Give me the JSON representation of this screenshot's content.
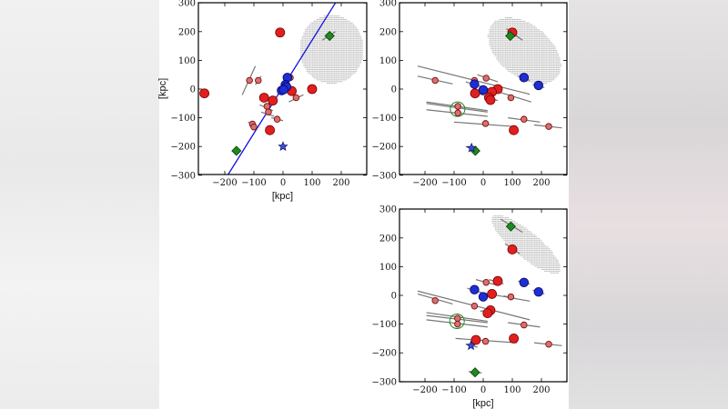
{
  "chart_data": [
    {
      "type": "scatter",
      "xlabel": "[kpc]",
      "ylabel": "[kpc]",
      "xlim": [
        -290,
        290
      ],
      "ylim": [
        -300,
        300
      ],
      "xticks": [
        -200,
        -100,
        0,
        100,
        200
      ],
      "yticks": [
        -300,
        -200,
        -100,
        0,
        100,
        200,
        300
      ],
      "grid": false,
      "colors": {
        "red": "#e02020",
        "small_red": "#d97070",
        "blue": "#1f2fcf",
        "green": "#1e8a1e",
        "line": "#1010e0",
        "region": "#bdbdbd",
        "error": "#777777"
      },
      "region": {
        "shape": "ellipse",
        "cx": 165,
        "cy": 140,
        "rx": 110,
        "ry": 120,
        "angle": 0
      },
      "fit_line": [
        [
          -190,
          -300
        ],
        [
          180,
          300
        ]
      ],
      "errors": [
        [
          -140,
          -20,
          -95,
          80
        ],
        [
          -95,
          15,
          -75,
          45
        ],
        [
          -80,
          -55,
          -35,
          -75
        ],
        [
          -75,
          -80,
          -30,
          -95
        ],
        [
          -120,
          -115,
          -90,
          -130
        ],
        [
          -40,
          -100,
          0,
          -110
        ],
        [
          20,
          -45,
          70,
          -20
        ],
        [
          135,
          170,
          180,
          200
        ],
        [
          -20,
          185,
          0,
          210
        ]
      ],
      "points": [
        {
          "x": -10,
          "y": 197,
          "kind": "red"
        },
        {
          "x": -270,
          "y": -15,
          "kind": "red"
        },
        {
          "x": -65,
          "y": -30,
          "kind": "red"
        },
        {
          "x": -35,
          "y": -40,
          "kind": "red"
        },
        {
          "x": 30,
          "y": -7,
          "kind": "red"
        },
        {
          "x": 100,
          "y": 0,
          "kind": "red"
        },
        {
          "x": -45,
          "y": -143,
          "kind": "red"
        },
        {
          "x": -115,
          "y": 30,
          "kind": "small_red"
        },
        {
          "x": -85,
          "y": 30,
          "kind": "small_red"
        },
        {
          "x": -55,
          "y": -60,
          "kind": "small_red"
        },
        {
          "x": -50,
          "y": -80,
          "kind": "small_red"
        },
        {
          "x": -105,
          "y": -122,
          "kind": "small_red"
        },
        {
          "x": -100,
          "y": -132,
          "kind": "small_red"
        },
        {
          "x": -20,
          "y": -105,
          "kind": "small_red"
        },
        {
          "x": 45,
          "y": -30,
          "kind": "small_red"
        },
        {
          "x": 25,
          "y": 40,
          "kind": "small_red"
        },
        {
          "x": 15,
          "y": 40,
          "kind": "blue"
        },
        {
          "x": 8,
          "y": 15,
          "kind": "blue"
        },
        {
          "x": 12,
          "y": 8,
          "kind": "blue"
        },
        {
          "x": -5,
          "y": -5,
          "kind": "blue"
        },
        {
          "x": 2,
          "y": -2,
          "kind": "blue"
        },
        {
          "x": 160,
          "y": 185,
          "kind": "green"
        },
        {
          "x": -160,
          "y": -215,
          "kind": "green"
        },
        {
          "x": 0,
          "y": -200,
          "kind": "star"
        }
      ]
    },
    {
      "type": "scatter",
      "xlabel": "",
      "ylabel": "",
      "xlim": [
        -290,
        290
      ],
      "ylim": [
        -300,
        300
      ],
      "xticks": [
        -200,
        -100,
        0,
        100,
        200
      ],
      "yticks": [
        -300,
        -200,
        -100,
        0,
        100,
        200,
        300
      ],
      "grid": false,
      "region": {
        "shape": "ellipse",
        "cx": 140,
        "cy": 135,
        "rx": 145,
        "ry": 90,
        "angle": -40
      },
      "ring": {
        "x": -88,
        "y": -70,
        "r": 25
      },
      "errors": [
        [
          -225,
          80,
          160,
          -18
        ],
        [
          -225,
          45,
          -105,
          18
        ],
        [
          -20,
          50,
          50,
          25
        ],
        [
          -60,
          25,
          165,
          -45
        ],
        [
          80,
          210,
          135,
          170
        ],
        [
          -195,
          -45,
          15,
          -75
        ],
        [
          -195,
          -50,
          15,
          -80
        ],
        [
          -195,
          -72,
          15,
          -95
        ],
        [
          -100,
          -115,
          100,
          -130
        ],
        [
          85,
          -100,
          195,
          -115
        ],
        [
          175,
          -125,
          270,
          -135
        ],
        [
          -60,
          -200,
          -20,
          -215
        ],
        [
          -30,
          -10,
          50,
          -40
        ],
        [
          120,
          45,
          160,
          30
        ],
        [
          170,
          15,
          210,
          5
        ]
      ],
      "points": [
        {
          "x": 100,
          "y": 197,
          "kind": "red"
        },
        {
          "x": 50,
          "y": 0,
          "kind": "red"
        },
        {
          "x": 30,
          "y": -10,
          "kind": "red"
        },
        {
          "x": 20,
          "y": -30,
          "kind": "red"
        },
        {
          "x": 25,
          "y": -38,
          "kind": "red"
        },
        {
          "x": -28,
          "y": -15,
          "kind": "red"
        },
        {
          "x": 105,
          "y": -143,
          "kind": "red"
        },
        {
          "x": -165,
          "y": 30,
          "kind": "small_red"
        },
        {
          "x": -30,
          "y": 30,
          "kind": "small_red"
        },
        {
          "x": 10,
          "y": 38,
          "kind": "small_red"
        },
        {
          "x": 95,
          "y": -30,
          "kind": "small_red"
        },
        {
          "x": -87,
          "y": -60,
          "kind": "small_red"
        },
        {
          "x": -87,
          "y": -83,
          "kind": "small_red"
        },
        {
          "x": 8,
          "y": -120,
          "kind": "small_red"
        },
        {
          "x": 140,
          "y": -105,
          "kind": "small_red"
        },
        {
          "x": 225,
          "y": -130,
          "kind": "small_red"
        },
        {
          "x": -30,
          "y": 17,
          "kind": "blue"
        },
        {
          "x": 0,
          "y": -3,
          "kind": "blue"
        },
        {
          "x": 140,
          "y": 40,
          "kind": "blue"
        },
        {
          "x": 190,
          "y": 13,
          "kind": "blue"
        },
        {
          "x": 93,
          "y": 185,
          "kind": "green"
        },
        {
          "x": -27,
          "y": -215,
          "kind": "green"
        },
        {
          "x": -40,
          "y": -205,
          "kind": "star"
        }
      ]
    },
    {
      "type": "scatter",
      "xlabel": "[kpc]",
      "ylabel": "",
      "xlim": [
        -290,
        290
      ],
      "ylim": [
        -300,
        300
      ],
      "xticks": [
        -200,
        -100,
        0,
        100,
        200
      ],
      "yticks": [
        -300,
        -200,
        -100,
        0,
        100,
        200,
        300
      ],
      "grid": false,
      "region": {
        "shape": "ellipse",
        "cx": 145,
        "cy": 180,
        "rx": 150,
        "ry": 45,
        "angle": -40
      },
      "ring": {
        "x": -90,
        "y": -90,
        "r": 25
      },
      "errors": [
        [
          60,
          265,
          135,
          220
        ],
        [
          75,
          180,
          125,
          145
        ],
        [
          -25,
          55,
          50,
          35
        ],
        [
          20,
          55,
          70,
          40
        ],
        [
          -55,
          25,
          10,
          5
        ],
        [
          -10,
          10,
          160,
          -20
        ],
        [
          70,
          -2,
          115,
          -12
        ],
        [
          -225,
          15,
          160,
          -85
        ],
        [
          -225,
          5,
          -105,
          -30
        ],
        [
          -195,
          -60,
          15,
          -90
        ],
        [
          -195,
          -70,
          15,
          -95
        ],
        [
          -195,
          -85,
          15,
          -110
        ],
        [
          85,
          -95,
          195,
          -110
        ],
        [
          -95,
          -150,
          115,
          -165
        ],
        [
          175,
          -165,
          270,
          -175
        ],
        [
          -60,
          -170,
          -20,
          -180
        ],
        [
          -50,
          -265,
          -5,
          -270
        ],
        [
          120,
          50,
          160,
          40
        ],
        [
          170,
          18,
          210,
          5
        ],
        [
          -10,
          -55,
          40,
          -50
        ]
      ],
      "points": [
        {
          "x": 100,
          "y": 160,
          "kind": "red"
        },
        {
          "x": 50,
          "y": 50,
          "kind": "red"
        },
        {
          "x": 30,
          "y": 5,
          "kind": "red"
        },
        {
          "x": 25,
          "y": -52,
          "kind": "red"
        },
        {
          "x": 15,
          "y": -62,
          "kind": "red"
        },
        {
          "x": -25,
          "y": -155,
          "kind": "red"
        },
        {
          "x": 105,
          "y": -150,
          "kind": "red"
        },
        {
          "x": 10,
          "y": 45,
          "kind": "small_red"
        },
        {
          "x": 95,
          "y": -5,
          "kind": "small_red"
        },
        {
          "x": -165,
          "y": -18,
          "kind": "small_red"
        },
        {
          "x": -30,
          "y": -37,
          "kind": "small_red"
        },
        {
          "x": -88,
          "y": -80,
          "kind": "small_red"
        },
        {
          "x": -88,
          "y": -100,
          "kind": "small_red"
        },
        {
          "x": 8,
          "y": -160,
          "kind": "small_red"
        },
        {
          "x": 140,
          "y": -103,
          "kind": "small_red"
        },
        {
          "x": 225,
          "y": -170,
          "kind": "small_red"
        },
        {
          "x": -30,
          "y": 20,
          "kind": "blue"
        },
        {
          "x": 0,
          "y": -5,
          "kind": "blue"
        },
        {
          "x": 140,
          "y": 45,
          "kind": "blue"
        },
        {
          "x": 190,
          "y": 12,
          "kind": "blue"
        },
        {
          "x": 95,
          "y": 240,
          "kind": "green"
        },
        {
          "x": -28,
          "y": -268,
          "kind": "green"
        },
        {
          "x": -42,
          "y": -175,
          "kind": "star"
        }
      ]
    }
  ]
}
